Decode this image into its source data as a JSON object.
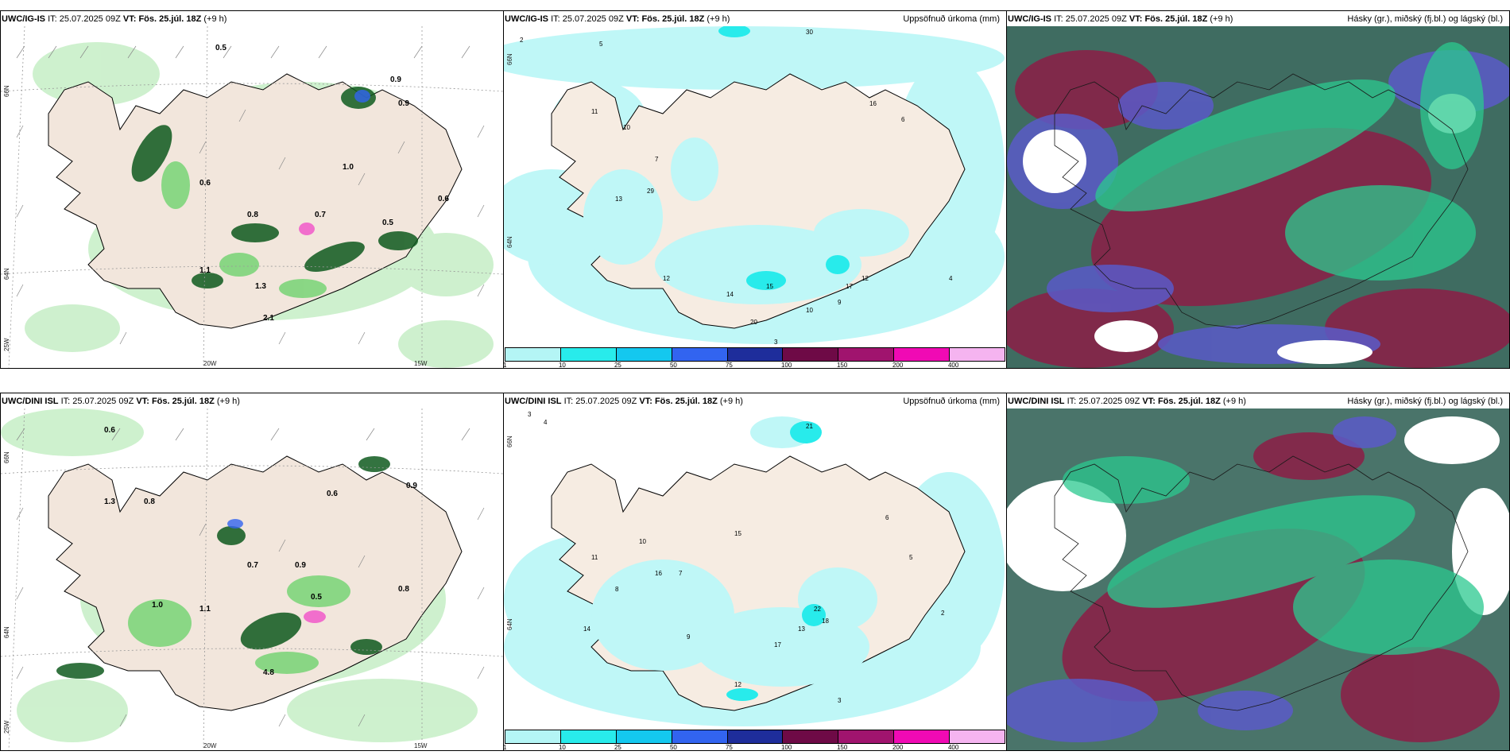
{
  "top": {
    "model": "UWC/IG-IS",
    "it_label": "IT:",
    "it_value": "25.07.2025 09Z",
    "vt_label": "VT: Fös. 25.júl. 18Z",
    "offset": "(+9 h)"
  },
  "bottom": {
    "model": "UWC/DINI ISL",
    "it_label": "IT:",
    "it_value": "25.07.2025 09Z",
    "vt_label": "VT: Fös. 25.júl. 18Z",
    "offset": "(+9 h)"
  },
  "precip_title": "Uppsöfnuð úrkoma (mm)",
  "cloud_title": "Hásky (gr.), miðský (fj.bl.) og lágský (bl.)",
  "axis_labels": {
    "lat66": "66N",
    "lat64": "64N",
    "lat25": "25W",
    "lon20": "20W",
    "lon15": "15W"
  },
  "colorbar": {
    "labels": [
      "1",
      "10",
      "25",
      "50",
      "75",
      "100",
      "150",
      "200",
      "400"
    ],
    "colors": [
      "#b4f5f5",
      "#28ebeb",
      "#14c8ef",
      "#3264f0",
      "#1e2d9b",
      "#6e0a46",
      "#a0146e",
      "#f00ab4",
      "#f5b4f0"
    ]
  },
  "colors": {
    "land": "#f2e6dc",
    "precip_light": "#bff7f7",
    "green_light": "#c9efc9",
    "green_mid": "#6fd36f",
    "green_dark": "#0f5a1e",
    "cloud_high": "#1f6e5a",
    "cloud_mid": "#8c1e46",
    "cloud_low": "#5a5ac8"
  },
  "wind_values_top": [
    "0.5",
    "0.9",
    "1.0",
    "0.6",
    "0.8",
    "0.7",
    "1.1",
    "1.3",
    "2.1",
    "0.9",
    "0.6",
    "0.5"
  ],
  "wind_values_bottom": [
    "0.6",
    "1.3",
    "0.8",
    "1.0",
    "0.7",
    "0.9",
    "0.5",
    "1.1",
    "0.6",
    "4.8",
    "0.8",
    "0.9"
  ],
  "precip_values_top": [
    "2",
    "5",
    "11",
    "10",
    "13",
    "29",
    "7",
    "12",
    "14",
    "20",
    "17",
    "6",
    "3",
    "9",
    "4",
    "12",
    "15",
    "10",
    "16",
    "30"
  ],
  "precip_values_bottom": [
    "4",
    "3",
    "8",
    "10",
    "14",
    "21",
    "7",
    "15",
    "16",
    "22",
    "18",
    "6",
    "12",
    "5",
    "9",
    "17",
    "13",
    "2",
    "11",
    "3"
  ]
}
